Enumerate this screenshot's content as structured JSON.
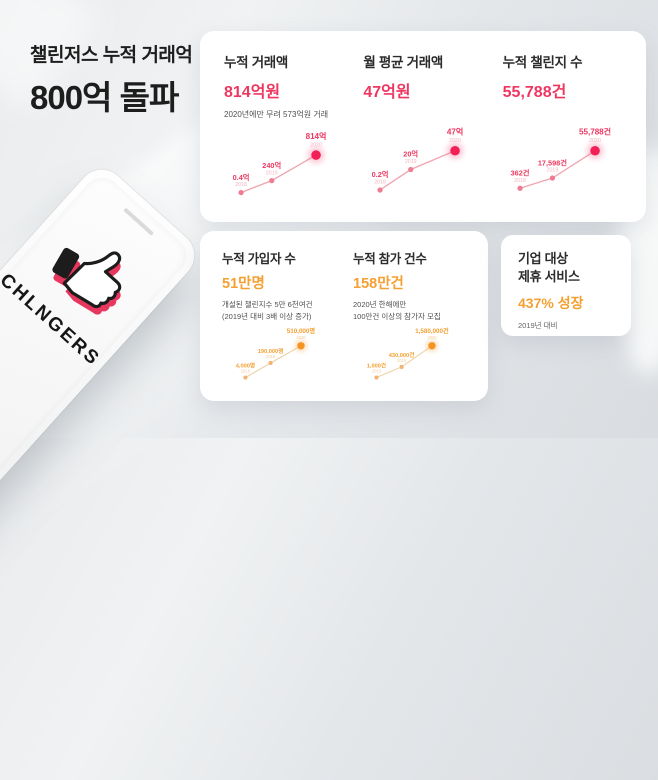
{
  "header": {
    "title_line1": "챌린저스 누적 거래억",
    "title_line2": "800억 돌파"
  },
  "phone": {
    "logo_text": "CHLNGERS"
  },
  "colors": {
    "pink": {
      "value": "#ee3760",
      "bright": "#f31f57",
      "mid": "#ee7d92",
      "line": "#f0a6b1",
      "year": "#f3b5c1"
    },
    "orange": {
      "value": "#f5a032",
      "bright": "#f59422",
      "mid": "#f2b272",
      "line": "#eed0a4",
      "year": "#f0cf9e"
    }
  },
  "partner_card": {
    "title_line1": "기업 대상",
    "title_line2": "제휴 서비스",
    "value": "437% 성장",
    "subtitle": "2019년 대비"
  },
  "chart_data": [
    {
      "type": "line",
      "title": "누적 거래액",
      "value": "814억원",
      "subtitle_lines": [
        "2020년에만 무려 573억원 거래"
      ],
      "accent": "pink",
      "x": [
        "2018",
        "2019",
        "2020"
      ],
      "unit": "억원",
      "points": [
        {
          "year": "2018",
          "label": "0.4억",
          "value": 0.4
        },
        {
          "year": "2019",
          "label": "240억",
          "value": 240
        },
        {
          "year": "2020",
          "label": "814억",
          "value": 814
        }
      ],
      "pos": [
        [
          20,
          84
        ],
        [
          56,
          70
        ],
        [
          108,
          40
        ]
      ]
    },
    {
      "type": "line",
      "title": "월 평균 거래액",
      "value": "47억원",
      "subtitle_lines": [],
      "accent": "pink",
      "x": [
        "2018",
        "2019",
        "2020"
      ],
      "unit": "억원",
      "points": [
        {
          "year": "2018",
          "label": "0.2억",
          "value": 0.2
        },
        {
          "year": "2019",
          "label": "20억",
          "value": 20
        },
        {
          "year": "2020",
          "label": "47억",
          "value": 47
        }
      ],
      "pos": [
        [
          20,
          86
        ],
        [
          56,
          62
        ],
        [
          108,
          40
        ]
      ]
    },
    {
      "type": "line",
      "title": "누적 챌린지 수",
      "value": "55,788건",
      "subtitle_lines": [],
      "accent": "pink",
      "x": [
        "2018",
        "2019",
        "2020"
      ],
      "unit": "건",
      "points": [
        {
          "year": "2018",
          "label": "362건",
          "value": 362
        },
        {
          "year": "2019",
          "label": "17,598건",
          "value": 17598
        },
        {
          "year": "2020",
          "label": "55,788건",
          "value": 55788
        }
      ],
      "pos": [
        [
          20,
          84
        ],
        [
          58,
          72
        ],
        [
          108,
          40
        ]
      ]
    },
    {
      "type": "line",
      "title": "누적 가입자 수",
      "value": "51만명",
      "subtitle_lines": [
        "개설된 챌린지수 5만 6천여건",
        "(2019년 대비 3배 이상 증가)"
      ],
      "accent": "orange",
      "x": [
        "2018",
        "2019",
        "2020"
      ],
      "unit": "명",
      "points": [
        {
          "year": "2018",
          "label": "4,000명",
          "value": 4000
        },
        {
          "year": "2019",
          "label": "190,000명",
          "value": 190000
        },
        {
          "year": "2020",
          "label": "510,000명",
          "value": 510000
        }
      ],
      "pos": [
        [
          20,
          84
        ],
        [
          58,
          62
        ],
        [
          104,
          36
        ]
      ]
    },
    {
      "type": "line",
      "title": "누적 참가 건수",
      "value": "158만건",
      "subtitle_lines": [
        "2020년 한해에만",
        "100만건 이상의 참가자 모집"
      ],
      "accent": "orange",
      "x": [
        "2018",
        "2019",
        "2020"
      ],
      "unit": "건",
      "points": [
        {
          "year": "2018",
          "label": "1,000건",
          "value": 1000
        },
        {
          "year": "2019",
          "label": "430,000건",
          "value": 430000
        },
        {
          "year": "2020",
          "label": "1,580,000건",
          "value": 1580000
        }
      ],
      "pos": [
        [
          20,
          84
        ],
        [
          58,
          68
        ],
        [
          104,
          36
        ]
      ]
    }
  ]
}
